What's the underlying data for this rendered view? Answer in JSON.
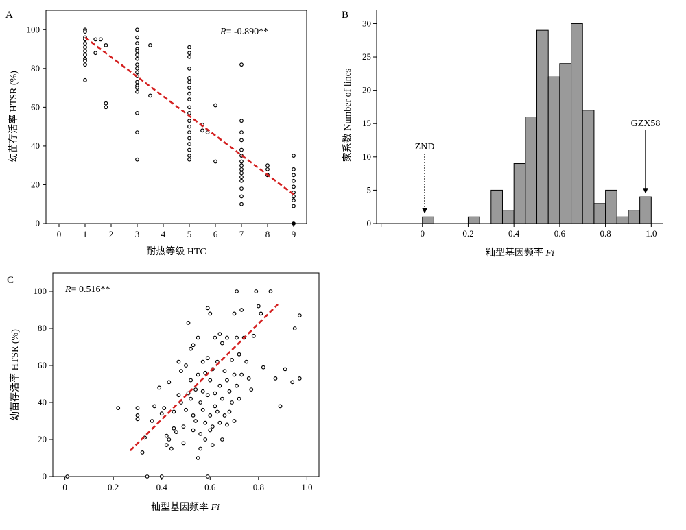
{
  "chart_data": [
    {
      "panel_label": "A",
      "type": "scatter",
      "xlabel": "耐热等级 HTC",
      "ylabel": "幼苗存活率 HTSR (%)",
      "xlim": [
        -0.5,
        9.5
      ],
      "ylim": [
        0,
        110
      ],
      "x_ticks": [
        0,
        1,
        2,
        3,
        4,
        5,
        6,
        7,
        8,
        9
      ],
      "y_ticks": [
        0,
        20,
        40,
        60,
        80,
        100
      ],
      "annotation_r": "R",
      "annotation_value": "= -0.890**",
      "regression": {
        "x": [
          1,
          9
        ],
        "y": [
          96,
          15
        ],
        "color": "#d42020",
        "style": "dashed"
      },
      "points": [
        [
          1,
          100
        ],
        [
          1,
          99
        ],
        [
          1,
          96
        ],
        [
          1,
          95
        ],
        [
          1,
          93
        ],
        [
          1,
          91
        ],
        [
          1,
          89
        ],
        [
          1,
          87
        ],
        [
          1,
          85
        ],
        [
          1,
          84
        ],
        [
          1,
          82
        ],
        [
          1,
          74
        ],
        [
          1.4,
          95
        ],
        [
          1.6,
          95
        ],
        [
          1.4,
          88
        ],
        [
          1.8,
          92
        ],
        [
          1.8,
          62
        ],
        [
          1.8,
          60
        ],
        [
          3,
          100
        ],
        [
          3,
          96
        ],
        [
          3,
          93
        ],
        [
          3,
          90
        ],
        [
          3,
          89
        ],
        [
          3,
          87
        ],
        [
          3,
          85
        ],
        [
          3,
          82
        ],
        [
          3,
          80
        ],
        [
          3,
          78
        ],
        [
          3,
          76
        ],
        [
          3,
          73
        ],
        [
          3,
          71
        ],
        [
          3,
          70
        ],
        [
          3,
          68
        ],
        [
          3,
          57
        ],
        [
          3,
          47
        ],
        [
          3,
          33
        ],
        [
          3.5,
          92
        ],
        [
          3.5,
          66
        ],
        [
          5,
          91
        ],
        [
          5,
          88
        ],
        [
          5,
          86
        ],
        [
          5,
          80
        ],
        [
          5,
          75
        ],
        [
          5,
          73
        ],
        [
          5,
          70
        ],
        [
          5,
          67
        ],
        [
          5,
          64
        ],
        [
          5,
          60
        ],
        [
          5,
          57
        ],
        [
          5,
          53
        ],
        [
          5,
          50
        ],
        [
          5,
          47
        ],
        [
          5,
          44
        ],
        [
          5,
          41
        ],
        [
          5,
          38
        ],
        [
          5,
          35
        ],
        [
          5,
          33
        ],
        [
          5.5,
          51
        ],
        [
          5.5,
          48
        ],
        [
          5.7,
          47
        ],
        [
          6,
          61
        ],
        [
          6,
          32
        ],
        [
          7,
          82
        ],
        [
          7,
          53
        ],
        [
          7,
          47
        ],
        [
          7,
          43
        ],
        [
          7,
          38
        ],
        [
          7,
          35
        ],
        [
          7,
          32
        ],
        [
          7,
          30
        ],
        [
          7,
          28
        ],
        [
          7,
          26
        ],
        [
          7,
          24
        ],
        [
          7,
          22
        ],
        [
          7,
          18
        ],
        [
          7,
          14
        ],
        [
          7,
          10
        ],
        [
          8,
          30
        ],
        [
          8,
          28
        ],
        [
          8,
          25
        ],
        [
          9,
          35
        ],
        [
          9,
          28
        ],
        [
          9,
          25
        ],
        [
          9,
          22
        ],
        [
          9,
          19
        ],
        [
          9,
          16
        ],
        [
          9,
          14
        ],
        [
          9,
          12
        ],
        [
          9,
          9
        ],
        [
          9,
          0
        ]
      ]
    },
    {
      "panel_label": "B",
      "type": "bar",
      "xlabel": "籼型基因频率 Fi",
      "ylabel": "家系数 Number of lines",
      "xlim": [
        -0.2,
        1.05
      ],
      "ylim": [
        0,
        32
      ],
      "x_ticks": [
        0,
        0.2,
        0.4,
        0.6,
        0.8,
        1.0
      ],
      "x_tick_labels": [
        "0",
        "0.2",
        "0.4",
        "0.6",
        "0.8",
        "1.0"
      ],
      "y_ticks": [
        0,
        5,
        10,
        15,
        20,
        25,
        30
      ],
      "bin_width": 0.05,
      "bar_color": "#9a9a9a",
      "bins": [
        {
          "x0": 0.0,
          "value": 1
        },
        {
          "x0": 0.2,
          "value": 1
        },
        {
          "x0": 0.3,
          "value": 5
        },
        {
          "x0": 0.35,
          "value": 2
        },
        {
          "x0": 0.4,
          "value": 9
        },
        {
          "x0": 0.45,
          "value": 16
        },
        {
          "x0": 0.5,
          "value": 29
        },
        {
          "x0": 0.55,
          "value": 22
        },
        {
          "x0": 0.6,
          "value": 24
        },
        {
          "x0": 0.65,
          "value": 30
        },
        {
          "x0": 0.7,
          "value": 17
        },
        {
          "x0": 0.75,
          "value": 3
        },
        {
          "x0": 0.8,
          "value": 5
        },
        {
          "x0": 0.85,
          "value": 1
        },
        {
          "x0": 0.9,
          "value": 2
        },
        {
          "x0": 0.95,
          "value": 4
        }
      ],
      "annotations": [
        {
          "text": "ZND",
          "x": 0.01,
          "y_text": 10.5,
          "y_tip": 1.5,
          "style": "dotted"
        },
        {
          "text": "GZX58",
          "x": 0.975,
          "y_text": 14,
          "y_tip": 4.5,
          "style": "solid"
        }
      ]
    },
    {
      "panel_label": "C",
      "type": "scatter",
      "xlabel": "籼型基因频率 Fi",
      "ylabel": "幼苗存活率 HTSR (%)",
      "xlim": [
        -0.05,
        1.05
      ],
      "ylim": [
        0,
        110
      ],
      "x_ticks": [
        0,
        0.2,
        0.4,
        0.6,
        0.8,
        1.0
      ],
      "x_tick_labels": [
        "0",
        "0.2",
        "0.4",
        "0.6",
        "0.8",
        "1.0"
      ],
      "y_ticks": [
        0,
        20,
        40,
        60,
        80,
        100
      ],
      "annotation_r": "R",
      "annotation_value": "= 0.516**",
      "regression": {
        "x": [
          0.27,
          0.88
        ],
        "y": [
          14,
          93
        ],
        "color": "#d42020",
        "style": "dashed"
      },
      "points": [
        [
          0.01,
          0
        ],
        [
          0.34,
          0
        ],
        [
          0.4,
          0
        ],
        [
          0.59,
          0
        ],
        [
          0.22,
          37
        ],
        [
          0.3,
          37
        ],
        [
          0.3,
          33
        ],
        [
          0.3,
          31
        ],
        [
          0.32,
          13
        ],
        [
          0.33,
          21
        ],
        [
          0.36,
          30
        ],
        [
          0.37,
          38
        ],
        [
          0.39,
          48
        ],
        [
          0.4,
          34
        ],
        [
          0.41,
          37
        ],
        [
          0.42,
          17
        ],
        [
          0.42,
          22
        ],
        [
          0.43,
          20
        ],
        [
          0.44,
          15
        ],
        [
          0.43,
          51
        ],
        [
          0.45,
          35
        ],
        [
          0.45,
          26
        ],
        [
          0.46,
          24
        ],
        [
          0.47,
          44
        ],
        [
          0.47,
          62
        ],
        [
          0.48,
          57
        ],
        [
          0.48,
          40
        ],
        [
          0.49,
          27
        ],
        [
          0.49,
          18
        ],
        [
          0.5,
          36
        ],
        [
          0.5,
          60
        ],
        [
          0.51,
          45
        ],
        [
          0.51,
          83
        ],
        [
          0.52,
          69
        ],
        [
          0.52,
          52
        ],
        [
          0.52,
          42
        ],
        [
          0.53,
          71
        ],
        [
          0.53,
          33
        ],
        [
          0.53,
          25
        ],
        [
          0.54,
          47
        ],
        [
          0.54,
          30
        ],
        [
          0.55,
          75
        ],
        [
          0.55,
          55
        ],
        [
          0.55,
          10
        ],
        [
          0.56,
          40
        ],
        [
          0.56,
          23
        ],
        [
          0.56,
          15
        ],
        [
          0.57,
          62
        ],
        [
          0.57,
          46
        ],
        [
          0.57,
          36
        ],
        [
          0.58,
          56
        ],
        [
          0.58,
          29
        ],
        [
          0.58,
          20
        ],
        [
          0.59,
          91
        ],
        [
          0.59,
          64
        ],
        [
          0.59,
          44
        ],
        [
          0.6,
          88
        ],
        [
          0.6,
          52
        ],
        [
          0.6,
          33
        ],
        [
          0.6,
          25
        ],
        [
          0.61,
          58
        ],
        [
          0.61,
          27
        ],
        [
          0.61,
          17
        ],
        [
          0.62,
          75
        ],
        [
          0.62,
          45
        ],
        [
          0.62,
          38
        ],
        [
          0.63,
          62
        ],
        [
          0.63,
          35
        ],
        [
          0.64,
          77
        ],
        [
          0.64,
          49
        ],
        [
          0.64,
          29
        ],
        [
          0.65,
          72
        ],
        [
          0.65,
          42
        ],
        [
          0.65,
          20
        ],
        [
          0.66,
          57
        ],
        [
          0.66,
          33
        ],
        [
          0.67,
          75
        ],
        [
          0.67,
          52
        ],
        [
          0.67,
          28
        ],
        [
          0.68,
          46
        ],
        [
          0.68,
          35
        ],
        [
          0.69,
          63
        ],
        [
          0.69,
          40
        ],
        [
          0.7,
          88
        ],
        [
          0.7,
          55
        ],
        [
          0.7,
          30
        ],
        [
          0.71,
          100
        ],
        [
          0.71,
          75
        ],
        [
          0.71,
          49
        ],
        [
          0.72,
          66
        ],
        [
          0.72,
          42
        ],
        [
          0.73,
          90
        ],
        [
          0.73,
          55
        ],
        [
          0.74,
          75
        ],
        [
          0.75,
          62
        ],
        [
          0.76,
          53
        ],
        [
          0.77,
          47
        ],
        [
          0.78,
          76
        ],
        [
          0.79,
          100
        ],
        [
          0.8,
          92
        ],
        [
          0.81,
          88
        ],
        [
          0.82,
          59
        ],
        [
          0.85,
          100
        ],
        [
          0.87,
          53
        ],
        [
          0.89,
          38
        ],
        [
          0.91,
          58
        ],
        [
          0.94,
          51
        ],
        [
          0.95,
          80
        ],
        [
          0.97,
          53
        ],
        [
          0.97,
          87
        ]
      ]
    }
  ]
}
